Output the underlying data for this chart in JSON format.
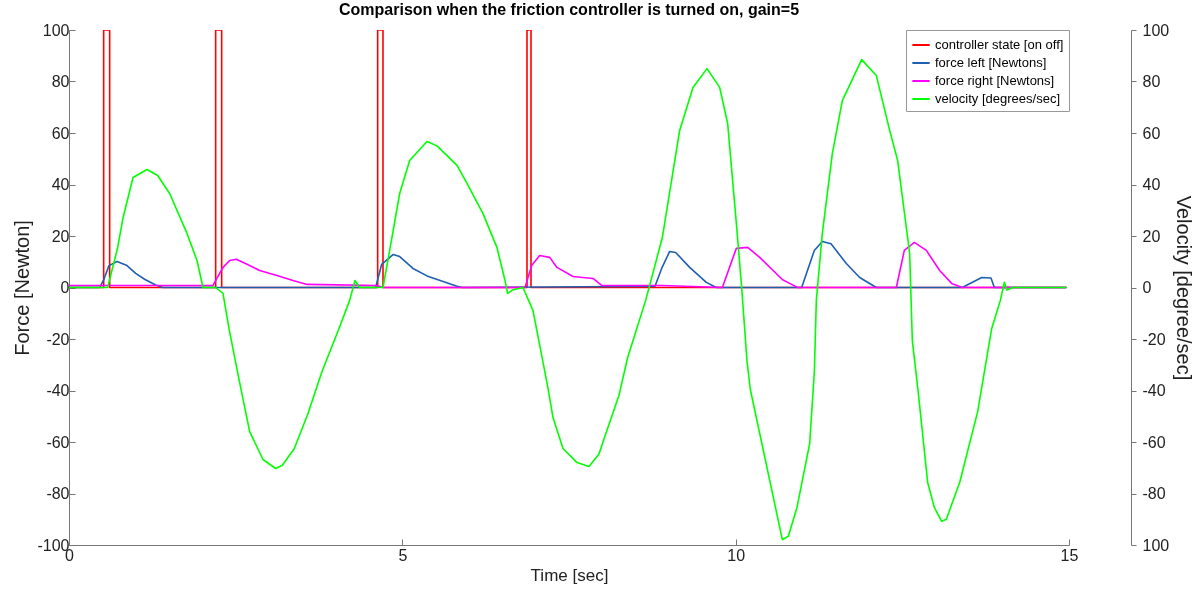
{
  "chart_data": {
    "type": "line",
    "title": "Comparison when the friction controller is turned on, gain=5",
    "xlabel": "Time [sec]",
    "ylabel": "Force [Newton]",
    "y2label": "Velocity [degree/sec]",
    "xlim": [
      0,
      15
    ],
    "xticks": [
      0,
      5,
      10,
      15
    ],
    "ylim": [
      -100,
      100
    ],
    "yticks": [
      -100,
      -80,
      -60,
      -40,
      -20,
      0,
      20,
      40,
      60,
      80,
      100
    ],
    "y2lim": [
      -100,
      100
    ],
    "y2ticks": [
      {
        "value": -100,
        "label": "100"
      },
      -80,
      -60,
      -40,
      -20,
      0,
      20,
      40,
      60,
      80,
      100
    ],
    "grid": false,
    "legend": "top right",
    "marker": "none",
    "line_style": "solid",
    "series": [
      {
        "name": "controller state [on off]",
        "color": "#ff0000",
        "x": [
          0,
          0.52,
          0.52,
          0.61,
          0.61,
          2.2,
          2.2,
          2.29,
          2.29,
          4.63,
          4.63,
          4.71,
          4.71,
          6.87,
          6.87,
          6.93,
          6.93,
          14.96
        ],
        "values": [
          0,
          0,
          100,
          100,
          0,
          0,
          100,
          100,
          0,
          0,
          100,
          100,
          0,
          0,
          100,
          100,
          0,
          0
        ]
      },
      {
        "name": "force left [Newtons]",
        "color": "#1f5fb0",
        "x": [
          0,
          0.46,
          0.52,
          0.6,
          0.72,
          0.87,
          1.0,
          1.14,
          1.3,
          1.41,
          4.6,
          4.69,
          4.86,
          4.96,
          5.16,
          5.37,
          5.82,
          5.9,
          8.79,
          8.89,
          9.01,
          9.1,
          9.31,
          9.56,
          9.71,
          10.99,
          11.18,
          11.3,
          11.43,
          11.66,
          11.86,
          12.11,
          13.4,
          13.69,
          13.83,
          13.88,
          14.96
        ],
        "values": [
          0,
          0,
          3,
          8.5,
          10.1,
          8.5,
          5.5,
          3.1,
          1,
          0,
          0,
          9,
          12.8,
          12,
          7.4,
          4.5,
          0.5,
          0,
          0.5,
          7.4,
          14,
          13.6,
          7.8,
          2,
          0,
          0,
          14.4,
          17.9,
          17,
          9.3,
          3.9,
          0,
          0,
          3.9,
          3.7,
          0,
          0
        ]
      },
      {
        "name": "force right [Newtons]",
        "color": "#ff00ff",
        "x": [
          0,
          2.16,
          2.31,
          2.41,
          2.51,
          2.67,
          2.86,
          3.12,
          3.36,
          3.57,
          4.62,
          4.71,
          6.84,
          6.94,
          7.06,
          7.21,
          7.32,
          7.56,
          7.86,
          7.99,
          8.9,
          9.8,
          10.01,
          10.18,
          10.36,
          10.7,
          10.78,
          10.93,
          12.41,
          12.53,
          12.68,
          12.86,
          13.06,
          13.24,
          13.4,
          14.96
        ],
        "values": [
          0.8,
          0.8,
          7.8,
          10.5,
          11,
          9,
          6.6,
          4.7,
          2.7,
          1.2,
          0.8,
          0,
          0,
          8.5,
          12.4,
          11.7,
          7.8,
          4.3,
          3.5,
          0.8,
          0.8,
          0,
          15.2,
          15.6,
          11.7,
          3.1,
          2,
          0,
          0,
          14.4,
          17.5,
          14.4,
          6.6,
          1.6,
          0,
          0
        ]
      },
      {
        "name": "velocity [degrees/sec]",
        "color": "#00ff00",
        "axis": "y2",
        "x": [
          0,
          0.58,
          0.73,
          0.81,
          0.96,
          1.17,
          1.33,
          1.51,
          1.77,
          1.92,
          2.01,
          2.2,
          2.31,
          2.4,
          2.55,
          2.71,
          2.91,
          3.1,
          3.2,
          3.38,
          3.58,
          3.79,
          4.05,
          4.21,
          4.29,
          4.36,
          4.71,
          4.81,
          4.96,
          5.11,
          5.37,
          5.52,
          5.82,
          5.97,
          6.21,
          6.42,
          6.54,
          6.58,
          6.65,
          6.81,
          6.96,
          7.08,
          7.18,
          7.26,
          7.41,
          7.62,
          7.8,
          7.95,
          8.03,
          8.25,
          8.38,
          8.65,
          8.9,
          9.16,
          9.36,
          9.57,
          9.76,
          9.88,
          10.01,
          10.09,
          10.17,
          10.22,
          10.7,
          10.79,
          10.92,
          11.11,
          11.18,
          11.21,
          11.3,
          11.45,
          11.6,
          11.89,
          12.11,
          12.31,
          12.43,
          12.61,
          12.65,
          12.74,
          12.88,
          12.98,
          13.09,
          13.16,
          13.36,
          13.63,
          13.84,
          13.97,
          14.03,
          14.07,
          14.15,
          14.96
        ],
        "values": [
          0,
          0,
          15.5,
          27,
          42.7,
          45.8,
          43.5,
          36.5,
          21,
          10.5,
          0,
          0,
          -2.3,
          -16,
          -35.7,
          -56,
          -66.8,
          -70.3,
          -69,
          -62.5,
          -49.3,
          -33,
          -15.9,
          -5,
          2.7,
          0,
          0,
          14.4,
          36.5,
          49.3,
          56.7,
          55,
          47.4,
          40.4,
          28.7,
          15.5,
          2.7,
          -2.3,
          -1,
          0,
          -9,
          -25,
          -38.4,
          -50.5,
          -62.5,
          -68,
          -69.5,
          -64.7,
          -58.4,
          -41.8,
          -27.2,
          -5,
          19.4,
          61,
          77.7,
          85,
          77.7,
          63.7,
          25,
          0,
          -28.6,
          -39.6,
          -97.9,
          -96.6,
          -85.4,
          -60.6,
          -32.8,
          -5,
          21,
          52,
          72.6,
          88.5,
          82.3,
          61,
          49.3,
          13.2,
          -20.6,
          -41,
          -75.7,
          -85.4,
          -90.8,
          -90,
          -75.7,
          -48.2,
          -16,
          -5,
          2,
          -1,
          0,
          0
        ]
      }
    ]
  }
}
